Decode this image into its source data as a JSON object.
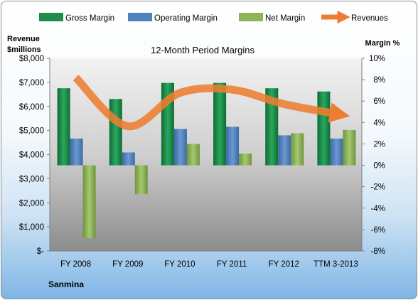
{
  "chart_data": {
    "type": "bar",
    "title": "12-Month Period Margins",
    "company": "Sanmina",
    "categories": [
      "FY 2008",
      "FY 2009",
      "FY 2010",
      "FY 2011",
      "FY 2012",
      "TTM 3-2013"
    ],
    "left_axis": {
      "label_line1": "Revenue",
      "label_line2": "$millions",
      "range": [
        0,
        8000
      ],
      "ticks": [
        "$-",
        "$1,000",
        "$2,000",
        "$3,000",
        "$4,000",
        "$5,000",
        "$6,000",
        "$7,000",
        "$8,000"
      ]
    },
    "right_axis": {
      "label": "Margin %",
      "range": [
        -8,
        10
      ],
      "ticks": [
        "-8%",
        "-6%",
        "-4%",
        "-2%",
        "0%",
        "2%",
        "4%",
        "6%",
        "8%",
        "10%"
      ]
    },
    "series": [
      {
        "name": "Gross Margin",
        "kind": "bar",
        "axis": "right",
        "color": "#1e8c4a",
        "values": [
          7.2,
          6.2,
          7.7,
          7.7,
          7.2,
          6.9
        ]
      },
      {
        "name": "Operating Margin",
        "kind": "bar",
        "axis": "right",
        "color": "#4f81bd",
        "values": [
          2.5,
          1.2,
          3.4,
          3.6,
          2.8,
          2.5
        ]
      },
      {
        "name": "Net Margin",
        "kind": "bar",
        "axis": "right",
        "color": "#8fb359",
        "values": [
          -6.8,
          -2.7,
          2.0,
          1.1,
          3.0,
          3.3
        ]
      },
      {
        "name": "Revenues",
        "kind": "line",
        "axis": "left",
        "color": "#ed7d31",
        "values": [
          7200,
          5180,
          6560,
          6700,
          6100,
          5700
        ]
      }
    ],
    "legend_position": "top",
    "grid": false
  }
}
